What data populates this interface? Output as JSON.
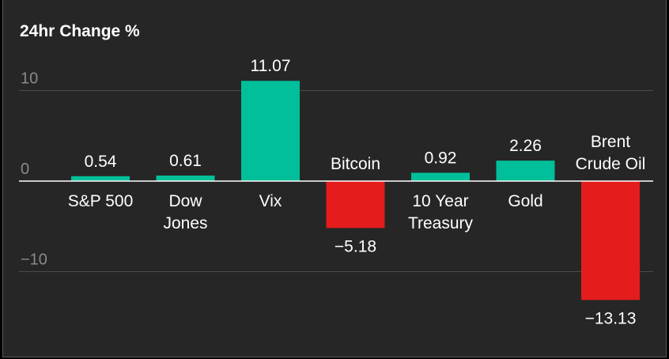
{
  "chart_data": {
    "type": "bar",
    "title": "24hr Change %",
    "categories": [
      [
        "S&P 500"
      ],
      [
        "Dow",
        "Jones"
      ],
      [
        "Vix"
      ],
      [
        "Bitcoin"
      ],
      [
        "10 Year",
        "Treasury"
      ],
      [
        "Gold"
      ],
      [
        "Brent",
        "Crude Oil"
      ]
    ],
    "values": [
      0.54,
      0.61,
      11.07,
      -5.18,
      0.92,
      2.26,
      -13.13
    ],
    "value_labels": [
      "0.54",
      "0.61",
      "11.07",
      "−5.18",
      "0.92",
      "2.26",
      "−13.13"
    ],
    "yticks": [
      10,
      0,
      -10
    ],
    "ytick_labels": [
      "10",
      "0",
      "−10"
    ],
    "ylim": [
      -16.5,
      12
    ],
    "grid": true,
    "colors": {
      "positive": "#00bf9a",
      "negative": "#e41c1c",
      "background": "#262626",
      "grid": "#4a4a4a",
      "zero_line": "#ffffff"
    }
  }
}
